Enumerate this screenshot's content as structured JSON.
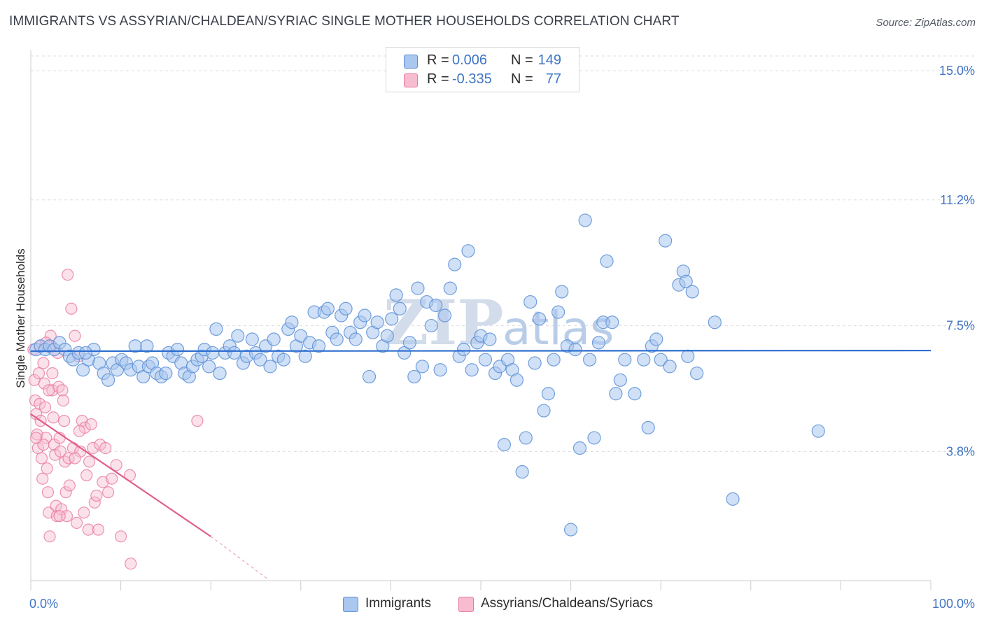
{
  "header": {
    "title": "IMMIGRANTS VS ASSYRIAN/CHALDEAN/SYRIAC SINGLE MOTHER HOUSEHOLDS CORRELATION CHART",
    "source": "Source: ZipAtlas.com"
  },
  "legend": {
    "rows": [
      {
        "r_label": "R =",
        "r_value": "0.006",
        "n_label": "N =",
        "n_value": "149"
      },
      {
        "r_label": "R =",
        "r_value": "-0.335",
        "n_label": "N =",
        "n_value": "77"
      }
    ]
  },
  "bottom_legend": {
    "items": [
      {
        "label": "Immigrants"
      },
      {
        "label": "Assyrians/Chaldeans/Syriacs"
      }
    ]
  },
  "watermark": {
    "zip": "ZIP",
    "atlas": "atlas"
  },
  "colors": {
    "immigrants_fill": "#a9c7ef",
    "immigrants_stroke": "#5b8fd6",
    "immigrants_line": "#2f6fd0",
    "assyrians_fill": "#f7bcd0",
    "assyrians_stroke": "#e8789e",
    "assyrians_line": "#e0608a",
    "tick_text": "#3f74c5",
    "grid": "#d9dde3"
  },
  "chart_data": {
    "type": "scatter",
    "title": "IMMIGRANTS VS ASSYRIAN/CHALDEAN/SYRIAC SINGLE MOTHER HOUSEHOLDS CORRELATION CHART",
    "xlabel": "",
    "ylabel": "Single Mother Households",
    "xlim": [
      0,
      100
    ],
    "ylim": [
      0,
      15.6
    ],
    "x_tick_labels": [
      "0.0%",
      "100.0%"
    ],
    "y_ticks": [
      3.8,
      7.5,
      11.2,
      15.0
    ],
    "y_tick_labels": [
      "3.8%",
      "7.5%",
      "11.2%",
      "15.0%"
    ],
    "grid": "horizontal dashed",
    "legend_position": "top-center",
    "series": [
      {
        "name": "Immigrants",
        "R": 0.006,
        "N": 149,
        "trend": {
          "x": [
            0,
            100
          ],
          "y": [
            6.75,
            6.77
          ]
        },
        "points": [
          [
            0.6,
            6.8
          ],
          [
            1.1,
            6.9
          ],
          [
            1.6,
            6.8
          ],
          [
            2.1,
            6.9
          ],
          [
            2.6,
            6.8
          ],
          [
            3.2,
            7.0
          ],
          [
            3.8,
            6.8
          ],
          [
            4.3,
            6.6
          ],
          [
            4.7,
            6.5
          ],
          [
            5.3,
            6.7
          ],
          [
            5.8,
            6.2
          ],
          [
            6.4,
            6.5
          ],
          [
            7.0,
            6.8
          ],
          [
            7.6,
            6.4
          ],
          [
            8.1,
            6.1
          ],
          [
            8.6,
            5.9
          ],
          [
            9.1,
            6.4
          ],
          [
            9.6,
            6.2
          ],
          [
            10.1,
            6.5
          ],
          [
            10.6,
            6.4
          ],
          [
            11.1,
            6.2
          ],
          [
            11.6,
            6.9
          ],
          [
            12.0,
            6.3
          ],
          [
            12.5,
            6.0
          ],
          [
            13.1,
            6.3
          ],
          [
            13.5,
            6.4
          ],
          [
            14.0,
            6.1
          ],
          [
            14.5,
            6.0
          ],
          [
            15.0,
            6.1
          ],
          [
            15.3,
            6.7
          ],
          [
            15.8,
            6.6
          ],
          [
            16.3,
            6.8
          ],
          [
            16.7,
            6.4
          ],
          [
            17.1,
            6.1
          ],
          [
            17.6,
            6.0
          ],
          [
            18.0,
            6.3
          ],
          [
            18.5,
            6.5
          ],
          [
            19.0,
            6.6
          ],
          [
            19.3,
            6.8
          ],
          [
            19.8,
            6.3
          ],
          [
            20.2,
            6.7
          ],
          [
            20.6,
            7.4
          ],
          [
            21.0,
            6.1
          ],
          [
            21.6,
            6.7
          ],
          [
            22.1,
            6.9
          ],
          [
            22.6,
            6.7
          ],
          [
            23.0,
            7.2
          ],
          [
            23.6,
            6.4
          ],
          [
            24.0,
            6.6
          ],
          [
            24.6,
            7.1
          ],
          [
            25.0,
            6.7
          ],
          [
            25.5,
            6.5
          ],
          [
            26.1,
            6.9
          ],
          [
            26.6,
            6.3
          ],
          [
            27.0,
            7.1
          ],
          [
            27.5,
            6.6
          ],
          [
            28.1,
            6.5
          ],
          [
            28.6,
            7.4
          ],
          [
            29.0,
            7.6
          ],
          [
            29.5,
            6.9
          ],
          [
            30.0,
            7.2
          ],
          [
            30.5,
            6.6
          ],
          [
            31.0,
            7.0
          ],
          [
            31.5,
            7.9
          ],
          [
            32.0,
            6.9
          ],
          [
            32.6,
            7.9
          ],
          [
            33.0,
            8.0
          ],
          [
            33.5,
            7.3
          ],
          [
            34.0,
            7.1
          ],
          [
            34.5,
            7.8
          ],
          [
            35.0,
            8.0
          ],
          [
            35.5,
            7.3
          ],
          [
            36.1,
            7.1
          ],
          [
            36.6,
            7.6
          ],
          [
            37.1,
            7.8
          ],
          [
            37.6,
            6.0
          ],
          [
            38.0,
            7.3
          ],
          [
            38.5,
            7.6
          ],
          [
            39.1,
            6.9
          ],
          [
            39.6,
            7.2
          ],
          [
            40.1,
            7.7
          ],
          [
            40.6,
            8.4
          ],
          [
            41.0,
            8.0
          ],
          [
            41.5,
            6.7
          ],
          [
            42.1,
            7.0
          ],
          [
            42.6,
            6.0
          ],
          [
            43.0,
            8.6
          ],
          [
            43.5,
            6.3
          ],
          [
            44.0,
            8.2
          ],
          [
            44.5,
            7.5
          ],
          [
            45.0,
            8.1
          ],
          [
            45.5,
            6.2
          ],
          [
            46.0,
            7.8
          ],
          [
            46.6,
            8.6
          ],
          [
            47.1,
            9.3
          ],
          [
            47.6,
            6.6
          ],
          [
            48.1,
            6.8
          ],
          [
            48.6,
            9.7
          ],
          [
            49.0,
            6.2
          ],
          [
            49.6,
            7.0
          ],
          [
            50.0,
            7.2
          ],
          [
            50.5,
            6.5
          ],
          [
            51.0,
            7.1
          ],
          [
            51.6,
            6.1
          ],
          [
            52.1,
            6.3
          ],
          [
            52.6,
            4.0
          ],
          [
            53.0,
            6.5
          ],
          [
            53.5,
            6.2
          ],
          [
            54.0,
            5.9
          ],
          [
            54.6,
            3.2
          ],
          [
            55.0,
            4.2
          ],
          [
            55.5,
            8.2
          ],
          [
            56.0,
            6.4
          ],
          [
            56.5,
            7.7
          ],
          [
            57.0,
            5.0
          ],
          [
            57.5,
            5.5
          ],
          [
            58.1,
            6.5
          ],
          [
            58.6,
            7.9
          ],
          [
            59.0,
            8.5
          ],
          [
            59.6,
            6.9
          ],
          [
            60.0,
            1.5
          ],
          [
            60.5,
            6.8
          ],
          [
            61.0,
            3.9
          ],
          [
            61.6,
            10.6
          ],
          [
            62.1,
            6.5
          ],
          [
            62.6,
            4.2
          ],
          [
            63.1,
            7.0
          ],
          [
            63.6,
            7.6
          ],
          [
            64.0,
            9.4
          ],
          [
            64.6,
            7.6
          ],
          [
            65.0,
            5.5
          ],
          [
            65.5,
            5.9
          ],
          [
            66.0,
            6.5
          ],
          [
            67.1,
            5.5
          ],
          [
            68.1,
            6.5
          ],
          [
            68.6,
            4.5
          ],
          [
            69.0,
            6.9
          ],
          [
            69.5,
            7.1
          ],
          [
            70.0,
            6.5
          ],
          [
            70.5,
            10.0
          ],
          [
            71.0,
            6.3
          ],
          [
            72.0,
            8.7
          ],
          [
            72.5,
            9.1
          ],
          [
            72.8,
            8.8
          ],
          [
            73.0,
            6.6
          ],
          [
            73.5,
            8.5
          ],
          [
            74.0,
            6.1
          ],
          [
            76.0,
            7.6
          ],
          [
            78.0,
            2.4
          ],
          [
            87.5,
            4.4
          ],
          [
            6.1,
            6.7
          ],
          [
            12.9,
            6.9
          ]
        ]
      },
      {
        "name": "Assyrians/Chaldeans/Syriacs",
        "R": -0.335,
        "N": 77,
        "trend": {
          "x": [
            0,
            20
          ],
          "y": [
            4.9,
            1.3
          ]
        },
        "trend_extension": {
          "x": [
            20,
            26.3
          ],
          "y": [
            1.3,
            0.05
          ]
        },
        "points": [
          [
            0.3,
            6.8
          ],
          [
            0.4,
            5.9
          ],
          [
            0.5,
            5.3
          ],
          [
            0.6,
            4.9
          ],
          [
            0.7,
            4.3
          ],
          [
            0.8,
            3.9
          ],
          [
            0.9,
            6.1
          ],
          [
            1.0,
            5.2
          ],
          [
            1.1,
            4.7
          ],
          [
            1.2,
            3.6
          ],
          [
            1.3,
            3.0
          ],
          [
            1.4,
            6.4
          ],
          [
            1.5,
            5.8
          ],
          [
            1.6,
            5.1
          ],
          [
            1.7,
            4.2
          ],
          [
            1.8,
            3.3
          ],
          [
            1.9,
            2.6
          ],
          [
            2.0,
            2.0
          ],
          [
            2.1,
            1.3
          ],
          [
            2.2,
            7.2
          ],
          [
            2.3,
            6.9
          ],
          [
            2.4,
            5.6
          ],
          [
            2.5,
            4.8
          ],
          [
            2.6,
            4.0
          ],
          [
            2.7,
            3.7
          ],
          [
            2.8,
            2.2
          ],
          [
            2.9,
            1.9
          ],
          [
            3.0,
            6.7
          ],
          [
            3.1,
            5.7
          ],
          [
            3.2,
            4.2
          ],
          [
            3.3,
            3.8
          ],
          [
            3.4,
            2.1
          ],
          [
            3.5,
            5.6
          ],
          [
            3.6,
            5.3
          ],
          [
            3.7,
            4.7
          ],
          [
            3.8,
            3.5
          ],
          [
            3.9,
            2.6
          ],
          [
            4.0,
            1.9
          ],
          [
            4.1,
            9.0
          ],
          [
            4.2,
            3.6
          ],
          [
            4.3,
            2.8
          ],
          [
            4.5,
            8.0
          ],
          [
            4.7,
            3.9
          ],
          [
            4.9,
            7.2
          ],
          [
            5.1,
            1.7
          ],
          [
            5.3,
            6.6
          ],
          [
            5.5,
            3.8
          ],
          [
            5.7,
            4.7
          ],
          [
            5.9,
            2.0
          ],
          [
            6.0,
            4.5
          ],
          [
            6.2,
            3.1
          ],
          [
            6.4,
            1.5
          ],
          [
            6.5,
            3.5
          ],
          [
            6.7,
            4.6
          ],
          [
            6.9,
            3.9
          ],
          [
            7.1,
            2.3
          ],
          [
            7.3,
            2.5
          ],
          [
            7.5,
            1.5
          ],
          [
            7.7,
            4.0
          ],
          [
            8.0,
            2.9
          ],
          [
            8.3,
            3.9
          ],
          [
            8.6,
            2.6
          ],
          [
            9.0,
            3.0
          ],
          [
            9.5,
            3.4
          ],
          [
            10.0,
            1.3
          ],
          [
            11.0,
            3.1
          ],
          [
            11.1,
            0.5
          ],
          [
            18.5,
            4.7
          ],
          [
            2.0,
            5.6
          ],
          [
            1.4,
            4.0
          ],
          [
            3.2,
            1.9
          ],
          [
            4.9,
            3.6
          ],
          [
            1.0,
            6.9
          ],
          [
            0.6,
            4.2
          ],
          [
            2.4,
            6.1
          ],
          [
            5.4,
            4.4
          ],
          [
            1.7,
            7.0
          ]
        ]
      }
    ]
  }
}
